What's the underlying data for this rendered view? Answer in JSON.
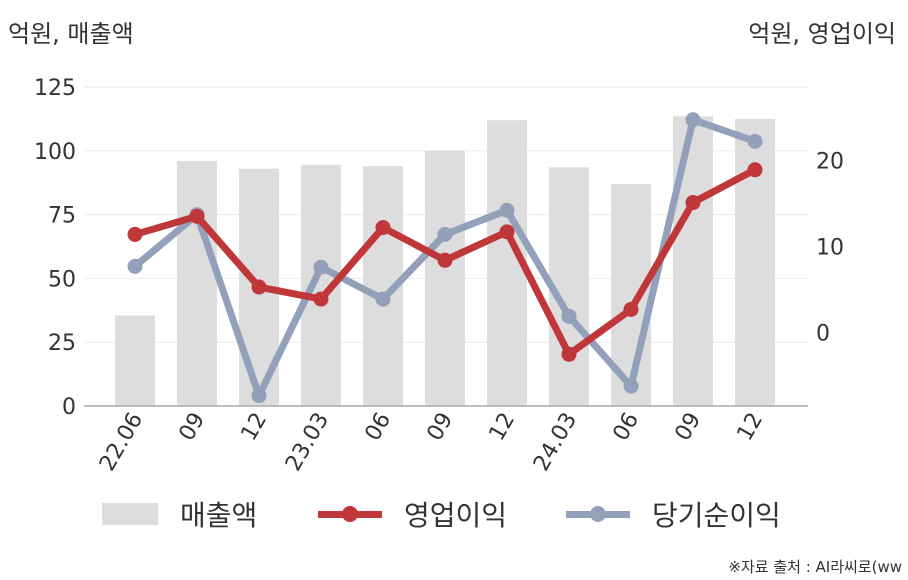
{
  "chart_data": {
    "type": "bar+line",
    "title": "",
    "left_axis_unit": "억원, 매출액",
    "right_axis_unit": "억원, 영업이익",
    "categories": [
      "22.06",
      "09",
      "12",
      "23.03",
      "06",
      "09",
      "12",
      "24.03",
      "06",
      "09",
      "12"
    ],
    "left_axis": {
      "ylim": [
        0,
        125
      ],
      "ticks": [
        "0",
        "25",
        "50",
        "75",
        "100",
        "125"
      ]
    },
    "right_axis": {
      "ylim": [
        -8.5,
        28.5
      ],
      "ticks": [
        "0",
        "10",
        "20"
      ],
      "tick_values": [
        0,
        10,
        20
      ]
    },
    "series": [
      {
        "name": "매출액",
        "type": "bar",
        "axis": "left",
        "color": "#dddddd",
        "values": [
          35.5,
          96,
          93,
          94.5,
          94,
          100,
          112,
          93.5,
          87,
          113.5,
          112.5
        ]
      },
      {
        "name": "영업이익",
        "type": "line",
        "axis": "right",
        "color": "#c0373a",
        "values": [
          11.4,
          13.5,
          5.3,
          3.9,
          12.2,
          8.4,
          11.7,
          -2.5,
          2.7,
          15.1,
          18.9
        ]
      },
      {
        "name": "당기순이익",
        "type": "line",
        "axis": "right",
        "color": "#92a0ba",
        "values": [
          7.7,
          13.7,
          -7.3,
          7.6,
          3.9,
          11.4,
          14.2,
          1.9,
          -6.2,
          24.7,
          22.2
        ]
      }
    ],
    "grid": true,
    "legend_position": "bottom"
  },
  "source": "※자료 출처 : AI라씨로(ww"
}
